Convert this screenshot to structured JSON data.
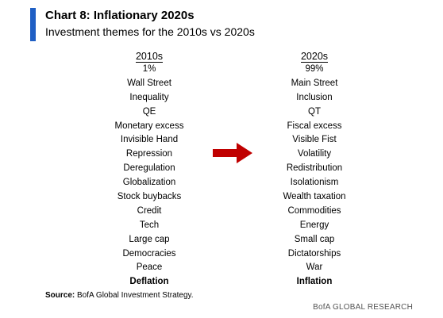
{
  "chart": {
    "title": "Chart 8: Inflationary 2020s",
    "subtitle": "Investment themes for the 2010s vs 2020s"
  },
  "columns": {
    "left": {
      "header": "2010s",
      "items": [
        "1%",
        "Wall Street",
        "Inequality",
        "QE",
        "Monetary excess",
        "Invisible Hand",
        "Repression",
        "Deregulation",
        "Globalization",
        "Stock buybacks",
        "Credit",
        "Tech",
        "Large cap",
        "Democracies",
        "Peace",
        "Deflation"
      ]
    },
    "right": {
      "header": "2020s",
      "items": [
        "99%",
        "Main Street",
        "Inclusion",
        "QT",
        "Fiscal excess",
        "Visible Fist",
        "Volatility",
        "Redistribution",
        "Isolationism",
        "Wealth taxation",
        "Commodities",
        "Energy",
        "Small cap",
        "Dictatorships",
        "War",
        "Inflation"
      ]
    }
  },
  "arrow": {
    "icon": "right-arrow-icon",
    "color": "#c00000"
  },
  "colors": {
    "accent": "#1f5fc4"
  },
  "footer": {
    "source_label": "Source:",
    "source_text": "BofA Global Investment Strategy.",
    "brand": "BofA GLOBAL RESEARCH"
  }
}
